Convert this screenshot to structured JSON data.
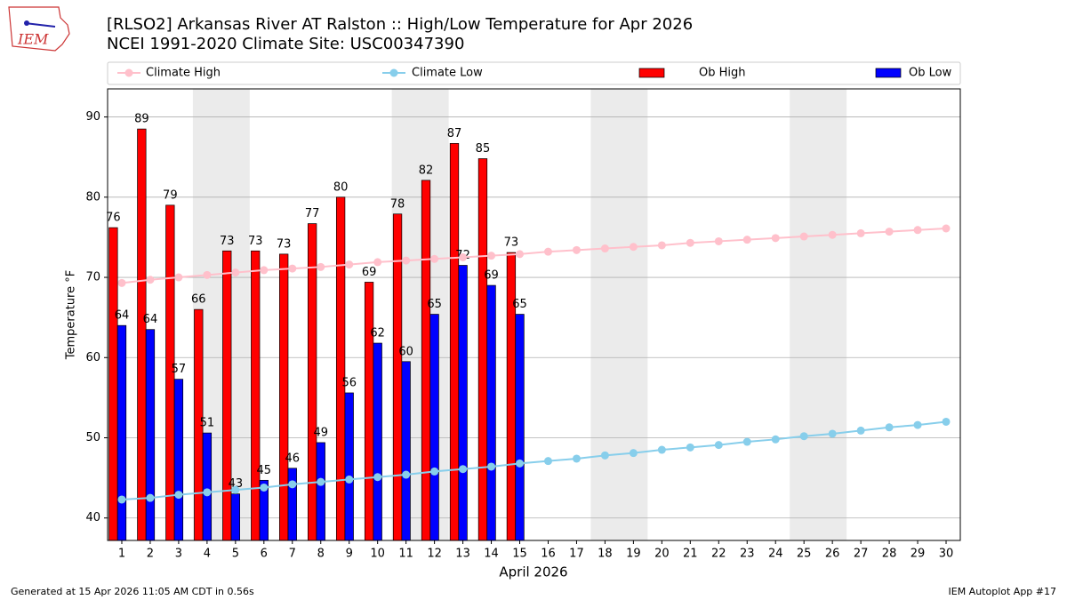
{
  "chart_data": {
    "type": "bar_line",
    "title": "[RLSO2] Arkansas River  AT Ralston :: High/Low Temperature for Apr 2026",
    "subtitle": "NCEI 1991-2020 Climate Site: USC00347390",
    "logo": "IEM",
    "xlabel": "April 2026",
    "ylabel": "Temperature °F",
    "footer_left": "Generated at 15 Apr 2026 11:05 AM CDT in 0.56s",
    "footer_right": "IEM Autoplot App #17",
    "x": [
      1,
      2,
      3,
      4,
      5,
      6,
      7,
      8,
      9,
      10,
      11,
      12,
      13,
      14,
      15,
      16,
      17,
      18,
      19,
      20,
      21,
      22,
      23,
      24,
      25,
      26,
      27,
      28,
      29,
      30
    ],
    "xlim": [
      0.5,
      30.5
    ],
    "xticks": [
      1,
      2,
      3,
      4,
      5,
      6,
      7,
      8,
      9,
      10,
      11,
      12,
      13,
      14,
      15,
      16,
      17,
      18,
      19,
      20,
      21,
      22,
      23,
      24,
      25,
      26,
      27,
      28,
      29,
      30
    ],
    "ylim": [
      37.2,
      93.5
    ],
    "yticks": [
      40,
      50,
      60,
      70,
      80,
      90
    ],
    "grid": true,
    "shaded_days": [
      [
        4,
        5
      ],
      [
        11,
        12
      ],
      [
        18,
        19
      ],
      [
        25,
        26
      ]
    ],
    "series": [
      {
        "name": "Climate High",
        "kind": "line",
        "color": "#ffc0cb",
        "values": [
          69.3,
          69.7,
          70.0,
          70.3,
          70.6,
          70.9,
          71.1,
          71.3,
          71.6,
          71.9,
          72.1,
          72.3,
          72.5,
          72.7,
          72.9,
          73.2,
          73.4,
          73.6,
          73.8,
          74.0,
          74.3,
          74.5,
          74.7,
          74.9,
          75.1,
          75.3,
          75.5,
          75.7,
          75.9,
          76.1
        ]
      },
      {
        "name": "Climate Low",
        "kind": "line",
        "color": "#87ceeb",
        "values": [
          42.3,
          42.5,
          42.9,
          43.2,
          43.5,
          43.8,
          44.2,
          44.5,
          44.8,
          45.1,
          45.4,
          45.8,
          46.1,
          46.4,
          46.8,
          47.1,
          47.4,
          47.8,
          48.1,
          48.5,
          48.8,
          49.1,
          49.5,
          49.8,
          50.2,
          50.5,
          50.9,
          51.3,
          51.6,
          52.0
        ]
      },
      {
        "name": "Ob High",
        "kind": "bar",
        "color": "#ff0000",
        "values": [
          76.2,
          88.5,
          79.0,
          66.0,
          73.3,
          73.3,
          72.9,
          76.7,
          80.0,
          69.4,
          77.9,
          82.1,
          86.7,
          84.8,
          73.1,
          null,
          null,
          null,
          null,
          null,
          null,
          null,
          null,
          null,
          null,
          null,
          null,
          null,
          null,
          null
        ],
        "value_labels": [
          "76",
          "89",
          "79",
          "66",
          "73",
          "73",
          "73",
          "77",
          "80",
          "69",
          "78",
          "82",
          "87",
          "85",
          "73",
          null,
          null,
          null,
          null,
          null,
          null,
          null,
          null,
          null,
          null,
          null,
          null,
          null,
          null,
          null
        ]
      },
      {
        "name": "Ob Low",
        "kind": "bar",
        "color": "#0000ff",
        "values": [
          64.0,
          63.5,
          57.3,
          50.6,
          43.0,
          44.7,
          46.2,
          49.4,
          55.6,
          61.8,
          59.5,
          65.4,
          71.5,
          69.0,
          65.4,
          null,
          null,
          null,
          null,
          null,
          null,
          null,
          null,
          null,
          null,
          null,
          null,
          null,
          null,
          null
        ],
        "value_labels": [
          "64",
          "64",
          "57",
          "51",
          "43",
          "45",
          "46",
          "49",
          "56",
          "62",
          "60",
          "65",
          "72",
          "69",
          "65",
          null,
          null,
          null,
          null,
          null,
          null,
          null,
          null,
          null,
          null,
          null,
          null,
          null,
          null,
          null
        ]
      }
    ]
  }
}
